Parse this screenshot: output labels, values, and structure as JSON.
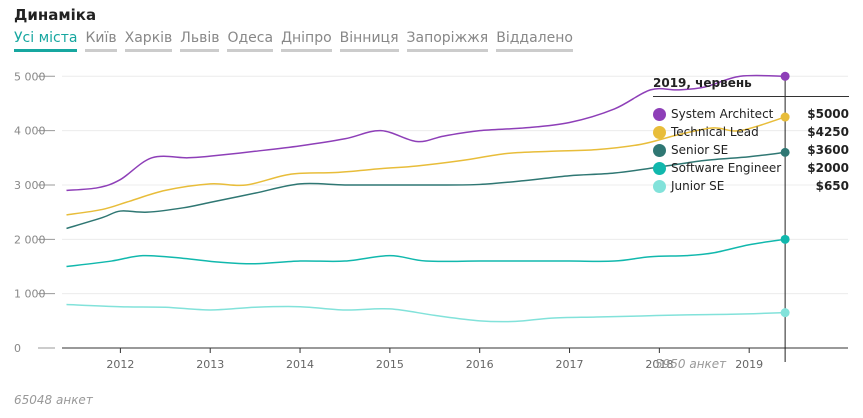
{
  "header": {
    "title": "Динаміка"
  },
  "tabs": [
    {
      "label": "Усі міста",
      "active": true
    },
    {
      "label": "Київ",
      "active": false
    },
    {
      "label": "Харків",
      "active": false
    },
    {
      "label": "Львів",
      "active": false
    },
    {
      "label": "Одеса",
      "active": false
    },
    {
      "label": "Дніпро",
      "active": false
    },
    {
      "label": "Вінниця",
      "active": false
    },
    {
      "label": "Запоріжжя",
      "active": false
    },
    {
      "label": "Віддалено",
      "active": false
    }
  ],
  "legend": {
    "title": "2019, червень",
    "items": [
      {
        "name": "System Architect",
        "value": "$5000",
        "color": "#8e3fb8"
      },
      {
        "name": "Technical Lead",
        "value": "$4250",
        "color": "#e8bd3a"
      },
      {
        "name": "Senior SE",
        "value": "$3600",
        "color": "#2f7773"
      },
      {
        "name": "Software Engineer",
        "value": "$2000",
        "color": "#11b8ad"
      },
      {
        "name": "Junior SE",
        "value": "$650",
        "color": "#82e2da"
      }
    ]
  },
  "notes": {
    "current_count": "5950 анкет",
    "total_count": "65048 анкет"
  },
  "chart_data": {
    "type": "line",
    "x_ticks": [
      "2012",
      "2013",
      "2014",
      "2015",
      "2016",
      "2017",
      "2018",
      "2019"
    ],
    "y_ticks": [
      "5 000",
      "4 000",
      "3 000",
      "2 000",
      "1 000",
      "0"
    ],
    "ylim": [
      0,
      5300
    ],
    "xlim": [
      2011.35,
      2020.1
    ],
    "highlight_x": 2019.4,
    "series": [
      {
        "name": "System Architect",
        "color": "#8e3fb8",
        "x": [
          2011.4,
          2011.75,
          2012.0,
          2012.35,
          2012.75,
          2013.0,
          2013.5,
          2014.0,
          2014.5,
          2014.9,
          2015.3,
          2015.6,
          2016.0,
          2016.5,
          2017.0,
          2017.5,
          2017.9,
          2018.2,
          2018.5,
          2018.9,
          2019.4
        ],
        "y": [
          2900,
          2950,
          3100,
          3500,
          3500,
          3530,
          3620,
          3720,
          3850,
          4000,
          3800,
          3900,
          4000,
          4050,
          4150,
          4400,
          4750,
          4750,
          4800,
          5000,
          5000
        ]
      },
      {
        "name": "Technical Lead",
        "color": "#e8bd3a",
        "x": [
          2011.4,
          2011.8,
          2012.1,
          2012.5,
          2013.0,
          2013.4,
          2013.9,
          2014.4,
          2014.9,
          2015.3,
          2015.8,
          2016.3,
          2016.8,
          2017.3,
          2017.8,
          2018.2,
          2018.6,
          2018.9,
          2019.4
        ],
        "y": [
          2450,
          2550,
          2700,
          2900,
          3020,
          3000,
          3200,
          3230,
          3300,
          3350,
          3450,
          3580,
          3620,
          3650,
          3750,
          3920,
          4050,
          4000,
          4250
        ]
      },
      {
        "name": "Senior SE",
        "color": "#2f7773",
        "x": [
          2011.4,
          2011.8,
          2012.0,
          2012.3,
          2012.7,
          2013.0,
          2013.5,
          2014.0,
          2014.5,
          2015.0,
          2015.5,
          2016.0,
          2016.5,
          2017.0,
          2017.5,
          2018.0,
          2018.5,
          2019.0,
          2019.4
        ],
        "y": [
          2200,
          2400,
          2520,
          2500,
          2580,
          2680,
          2850,
          3020,
          3000,
          3000,
          3000,
          3010,
          3080,
          3170,
          3220,
          3330,
          3450,
          3520,
          3600
        ]
      },
      {
        "name": "Software Engineer",
        "color": "#11b8ad",
        "x": [
          2011.4,
          2011.9,
          2012.25,
          2012.7,
          2013.1,
          2013.5,
          2014.0,
          2014.5,
          2015.0,
          2015.4,
          2016.0,
          2016.5,
          2017.0,
          2017.5,
          2017.9,
          2018.3,
          2018.6,
          2019.0,
          2019.4
        ],
        "y": [
          1500,
          1600,
          1700,
          1650,
          1580,
          1550,
          1600,
          1600,
          1700,
          1600,
          1600,
          1600,
          1600,
          1600,
          1680,
          1700,
          1750,
          1900,
          2000
        ]
      },
      {
        "name": "Junior SE",
        "color": "#82e2da",
        "x": [
          2011.4,
          2012.0,
          2012.5,
          2013.0,
          2013.5,
          2014.0,
          2014.5,
          2015.0,
          2015.5,
          2016.0,
          2016.4,
          2016.8,
          2017.3,
          2017.8,
          2018.3,
          2018.8,
          2019.4
        ],
        "y": [
          800,
          760,
          750,
          700,
          750,
          760,
          700,
          720,
          600,
          500,
          490,
          550,
          570,
          590,
          610,
          620,
          650
        ]
      }
    ]
  }
}
